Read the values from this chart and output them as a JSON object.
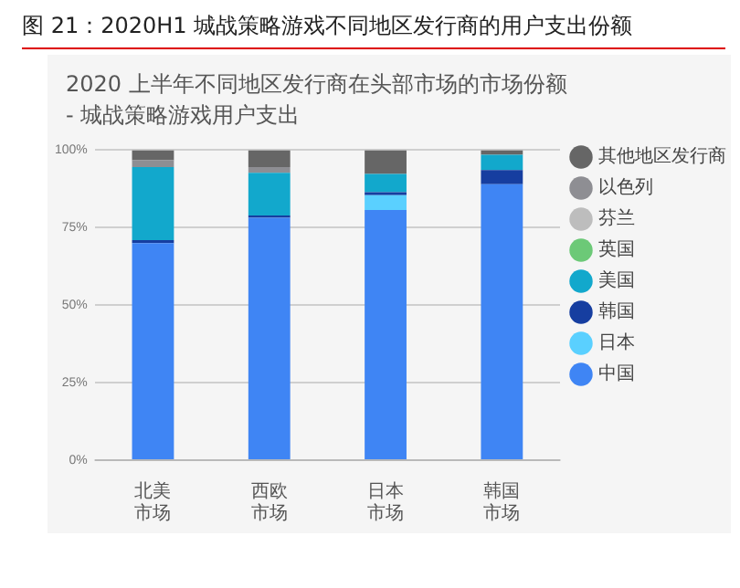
{
  "chart_data": {
    "type": "bar",
    "title": "图 21：2020H1 城战策略游戏不同地区发行商的用户支出份额",
    "subtitle": "2020 上半年不同地区发行商在头部市场的市场份额\n- 城战策略游戏用户支出",
    "categories": [
      "北美市场",
      "西欧市场",
      "日本市场",
      "韩国市场"
    ],
    "stacked": true,
    "series": [
      {
        "name": "中国",
        "color": "#3f85f4",
        "values": [
          70,
          78.2,
          80.7,
          89
        ]
      },
      {
        "name": "日本",
        "color": "#5ad0ff",
        "values": [
          null,
          null,
          4.8,
          null
        ]
      },
      {
        "name": "韩国",
        "color": "#163ea0",
        "values": [
          1,
          0.7,
          0.9,
          4.6
        ]
      },
      {
        "name": "美国",
        "color": "#12a8cc",
        "values": [
          23.5,
          13.8,
          5.9,
          4.9
        ]
      },
      {
        "name": "英国",
        "color": "#6cc977",
        "values": [
          null,
          null,
          null,
          null
        ]
      },
      {
        "name": "芬兰",
        "color": "#bdbdbd",
        "values": [
          null,
          null,
          null,
          null
        ]
      },
      {
        "name": "以色列",
        "color": "#8e8e93",
        "values": [
          2.2,
          1.8,
          null,
          null
        ]
      },
      {
        "name": "其他地区发行商",
        "color": "#666666",
        "values": [
          3.3,
          5.5,
          7.7,
          1.5
        ]
      }
    ],
    "ylim": [
      0,
      100
    ],
    "yticks": [
      {
        "value": 0,
        "label": "0%"
      },
      {
        "value": 25,
        "label": "25%"
      },
      {
        "value": 50,
        "label": "50%"
      },
      {
        "value": 75,
        "label": "75%"
      },
      {
        "value": 100,
        "label": "100%"
      }
    ],
    "grid": "y",
    "legend": "right"
  }
}
